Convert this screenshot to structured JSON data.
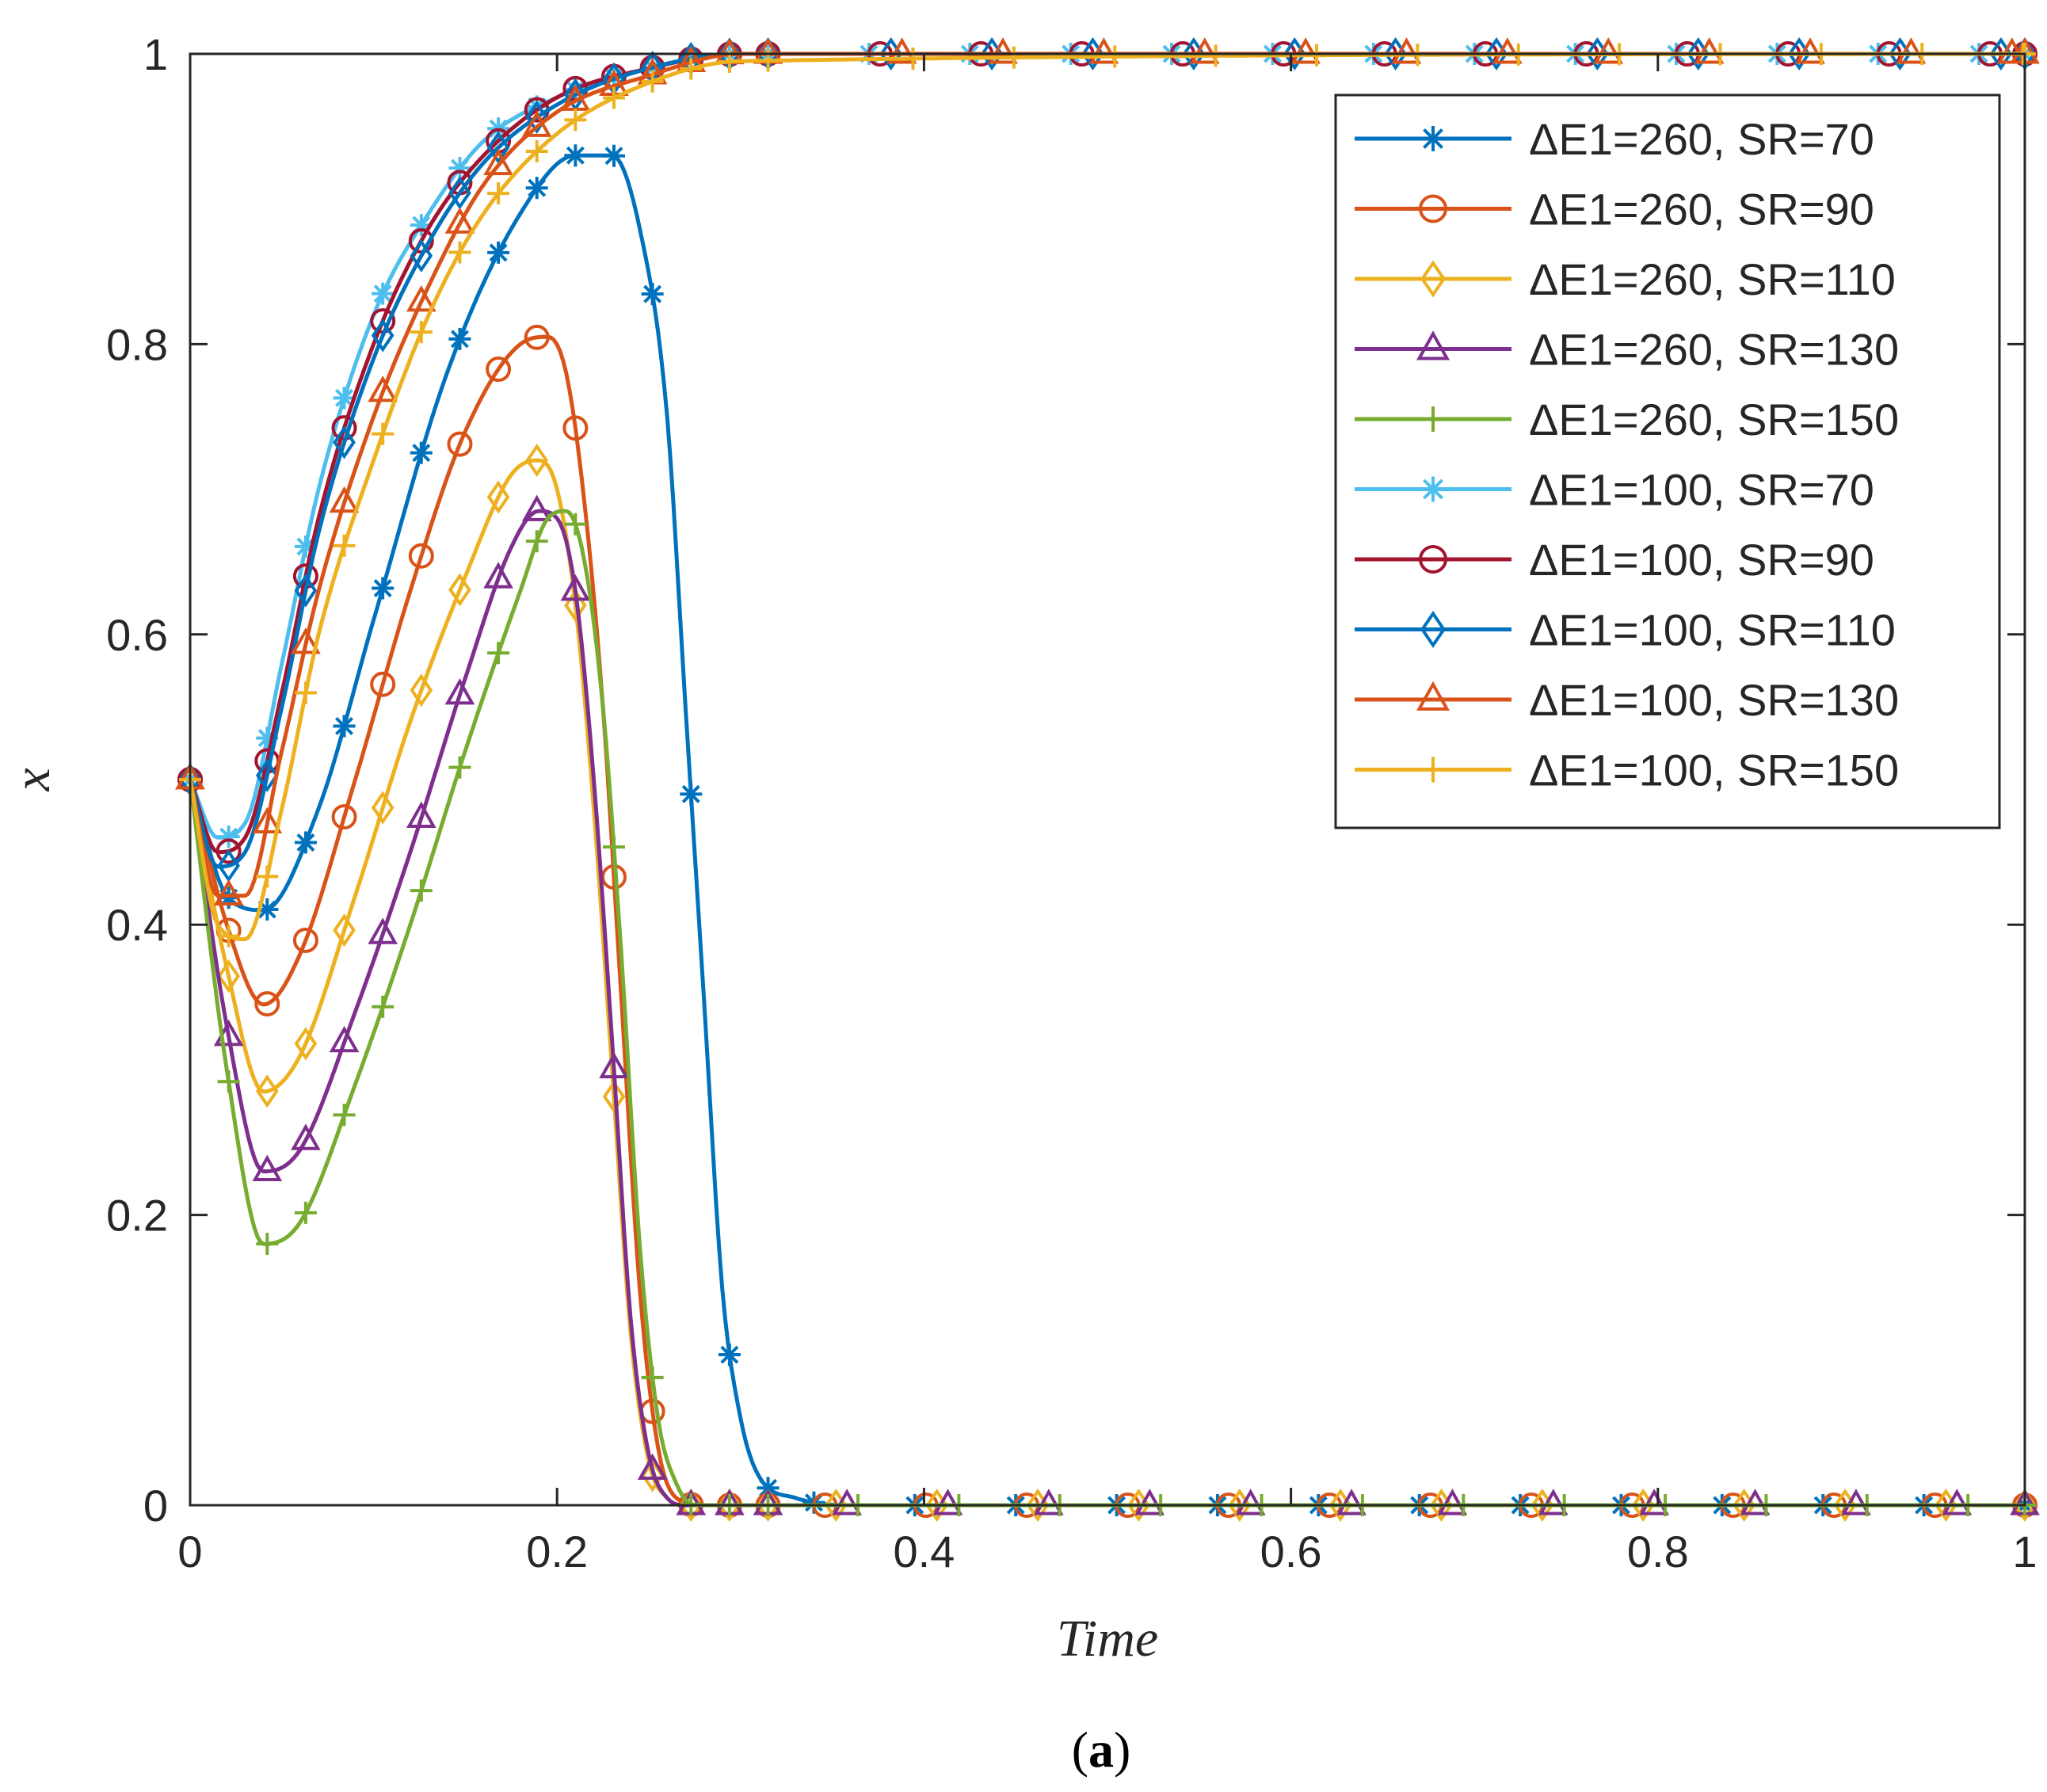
{
  "chart_data": {
    "type": "line",
    "title": "",
    "xlabel": "Time",
    "ylabel": "x",
    "xlim": [
      0,
      1
    ],
    "ylim": [
      0,
      1
    ],
    "x_ticks": [
      "0",
      "0.2",
      "0.4",
      "0.6",
      "0.8",
      "1"
    ],
    "y_ticks": [
      "0",
      "0.2",
      "0.4",
      "0.6",
      "0.8",
      "1"
    ],
    "grid": false,
    "legend_position": "top-right",
    "caption": {
      "open": "(",
      "letter": "a",
      "close": ")"
    },
    "series": [
      {
        "name": "ΔE1=260, SR=70",
        "color": "#0072BD",
        "marker": "star",
        "points": [
          [
            0,
            0.5
          ],
          [
            0.02,
            0.42
          ],
          [
            0.04,
            0.41
          ],
          [
            0.07,
            0.48
          ],
          [
            0.1,
            0.61
          ],
          [
            0.14,
            0.78
          ],
          [
            0.18,
            0.89
          ],
          [
            0.21,
            0.93
          ],
          [
            0.23,
            0.93
          ],
          [
            0.245,
            0.88
          ],
          [
            0.26,
            0.75
          ],
          [
            0.27,
            0.55
          ],
          [
            0.28,
            0.35
          ],
          [
            0.29,
            0.15
          ],
          [
            0.3,
            0.06
          ],
          [
            0.31,
            0.02
          ],
          [
            0.33,
            0.005
          ],
          [
            0.36,
            0.0
          ],
          [
            1,
            0.0
          ]
        ]
      },
      {
        "name": "ΔE1=260, SR=90",
        "color": "#D95319",
        "marker": "circle",
        "points": [
          [
            0,
            0.5
          ],
          [
            0.02,
            0.4
          ],
          [
            0.04,
            0.345
          ],
          [
            0.06,
            0.38
          ],
          [
            0.09,
            0.5
          ],
          [
            0.12,
            0.63
          ],
          [
            0.15,
            0.74
          ],
          [
            0.18,
            0.8
          ],
          [
            0.195,
            0.805
          ],
          [
            0.205,
            0.78
          ],
          [
            0.215,
            0.69
          ],
          [
            0.225,
            0.55
          ],
          [
            0.235,
            0.35
          ],
          [
            0.245,
            0.15
          ],
          [
            0.255,
            0.04
          ],
          [
            0.265,
            0.005
          ],
          [
            0.28,
            0.0
          ],
          [
            1,
            0.0
          ]
        ]
      },
      {
        "name": "ΔE1=260, SR=110",
        "color": "#EDB120",
        "marker": "diamond",
        "points": [
          [
            0,
            0.5
          ],
          [
            0.02,
            0.37
          ],
          [
            0.04,
            0.285
          ],
          [
            0.06,
            0.31
          ],
          [
            0.09,
            0.42
          ],
          [
            0.12,
            0.54
          ],
          [
            0.15,
            0.64
          ],
          [
            0.175,
            0.71
          ],
          [
            0.19,
            0.72
          ],
          [
            0.2,
            0.7
          ],
          [
            0.21,
            0.62
          ],
          [
            0.22,
            0.48
          ],
          [
            0.23,
            0.3
          ],
          [
            0.24,
            0.12
          ],
          [
            0.25,
            0.03
          ],
          [
            0.26,
            0.005
          ],
          [
            0.27,
            0.0
          ],
          [
            1,
            0.0
          ]
        ]
      },
      {
        "name": "ΔE1=260, SR=130",
        "color": "#7E2F8E",
        "marker": "triangle",
        "points": [
          [
            0,
            0.5
          ],
          [
            0.02,
            0.33
          ],
          [
            0.04,
            0.23
          ],
          [
            0.06,
            0.245
          ],
          [
            0.09,
            0.34
          ],
          [
            0.12,
            0.45
          ],
          [
            0.15,
            0.57
          ],
          [
            0.175,
            0.66
          ],
          [
            0.19,
            0.685
          ],
          [
            0.2,
            0.68
          ],
          [
            0.21,
            0.63
          ],
          [
            0.22,
            0.5
          ],
          [
            0.23,
            0.32
          ],
          [
            0.24,
            0.13
          ],
          [
            0.25,
            0.035
          ],
          [
            0.26,
            0.005
          ],
          [
            0.27,
            0.0
          ],
          [
            1,
            0.0
          ]
        ]
      },
      {
        "name": "ΔE1=260, SR=150",
        "color": "#77AC30",
        "marker": "plus",
        "points": [
          [
            0,
            0.5
          ],
          [
            0.02,
            0.3
          ],
          [
            0.04,
            0.18
          ],
          [
            0.06,
            0.195
          ],
          [
            0.09,
            0.29
          ],
          [
            0.12,
            0.4
          ],
          [
            0.15,
            0.52
          ],
          [
            0.18,
            0.63
          ],
          [
            0.195,
            0.68
          ],
          [
            0.205,
            0.685
          ],
          [
            0.215,
            0.65
          ],
          [
            0.225,
            0.55
          ],
          [
            0.235,
            0.38
          ],
          [
            0.245,
            0.18
          ],
          [
            0.255,
            0.06
          ],
          [
            0.265,
            0.015
          ],
          [
            0.275,
            0.0
          ],
          [
            1,
            0.0
          ]
        ]
      },
      {
        "name": "ΔE1=100, SR=70",
        "color": "#4DBEEE",
        "marker": "star",
        "points": [
          [
            0,
            0.5
          ],
          [
            0.015,
            0.46
          ],
          [
            0.03,
            0.47
          ],
          [
            0.05,
            0.58
          ],
          [
            0.07,
            0.7
          ],
          [
            0.1,
            0.82
          ],
          [
            0.13,
            0.89
          ],
          [
            0.16,
            0.94
          ],
          [
            0.2,
            0.97
          ],
          [
            0.25,
            0.99
          ],
          [
            0.3,
            1.0
          ],
          [
            1,
            1.0
          ]
        ]
      },
      {
        "name": "ΔE1=100, SR=90",
        "color": "#A2142F",
        "marker": "circle",
        "points": [
          [
            0,
            0.5
          ],
          [
            0.015,
            0.45
          ],
          [
            0.03,
            0.46
          ],
          [
            0.05,
            0.56
          ],
          [
            0.07,
            0.68
          ],
          [
            0.1,
            0.8
          ],
          [
            0.13,
            0.88
          ],
          [
            0.16,
            0.93
          ],
          [
            0.2,
            0.97
          ],
          [
            0.25,
            0.99
          ],
          [
            0.3,
            1.0
          ],
          [
            1,
            1.0
          ]
        ]
      },
      {
        "name": "ΔE1=100, SR=110",
        "color": "#0072BD",
        "marker": "diamond",
        "points": [
          [
            0,
            0.5
          ],
          [
            0.015,
            0.44
          ],
          [
            0.03,
            0.45
          ],
          [
            0.05,
            0.55
          ],
          [
            0.07,
            0.67
          ],
          [
            0.1,
            0.79
          ],
          [
            0.13,
            0.87
          ],
          [
            0.16,
            0.925
          ],
          [
            0.2,
            0.965
          ],
          [
            0.25,
            0.99
          ],
          [
            0.3,
            1.0
          ],
          [
            1,
            1.0
          ]
        ]
      },
      {
        "name": "ΔE1=100, SR=130",
        "color": "#D95319",
        "marker": "triangle",
        "points": [
          [
            0,
            0.5
          ],
          [
            0.015,
            0.42
          ],
          [
            0.03,
            0.42
          ],
          [
            0.05,
            0.52
          ],
          [
            0.07,
            0.63
          ],
          [
            0.1,
            0.75
          ],
          [
            0.13,
            0.84
          ],
          [
            0.16,
            0.91
          ],
          [
            0.2,
            0.96
          ],
          [
            0.25,
            0.985
          ],
          [
            0.3,
            1.0
          ],
          [
            1,
            1.0
          ]
        ]
      },
      {
        "name": "ΔE1=100, SR=150",
        "color": "#EDB120",
        "marker": "plus",
        "points": [
          [
            0,
            0.5
          ],
          [
            0.015,
            0.4
          ],
          [
            0.03,
            0.39
          ],
          [
            0.05,
            0.48
          ],
          [
            0.07,
            0.6
          ],
          [
            0.1,
            0.72
          ],
          [
            0.13,
            0.82
          ],
          [
            0.16,
            0.89
          ],
          [
            0.2,
            0.945
          ],
          [
            0.25,
            0.98
          ],
          [
            0.3,
            0.995
          ],
          [
            1,
            1.0
          ]
        ]
      }
    ]
  }
}
